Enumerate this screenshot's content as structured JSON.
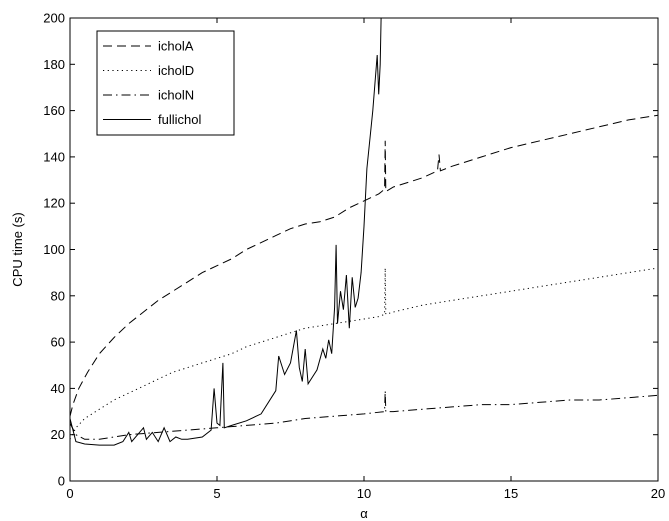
{
  "chart_data": {
    "type": "line",
    "title": "",
    "xlabel": "α",
    "ylabel": "CPU time (s)",
    "xlim": [
      0,
      20
    ],
    "ylim": [
      0,
      200
    ],
    "xticks": [
      0,
      5,
      10,
      15,
      20
    ],
    "yticks": [
      0,
      20,
      40,
      60,
      80,
      100,
      120,
      140,
      160,
      180,
      200
    ],
    "grid": false,
    "legend_position": "top-left",
    "series": [
      {
        "name": "icholA",
        "style": "dashed",
        "color": "#000000",
        "points": [
          [
            0,
            28
          ],
          [
            0.1,
            33
          ],
          [
            0.3,
            40
          ],
          [
            0.6,
            47
          ],
          [
            1,
            55
          ],
          [
            1.5,
            62
          ],
          [
            2,
            68
          ],
          [
            2.5,
            73
          ],
          [
            3,
            78
          ],
          [
            3.5,
            82
          ],
          [
            4,
            86
          ],
          [
            4.5,
            90
          ],
          [
            5,
            93
          ],
          [
            5.5,
            96
          ],
          [
            6,
            100
          ],
          [
            6.5,
            103
          ],
          [
            7,
            106
          ],
          [
            7.5,
            109
          ],
          [
            8,
            111
          ],
          [
            8.5,
            112
          ],
          [
            9,
            114
          ],
          [
            9.5,
            118
          ],
          [
            10,
            121
          ],
          [
            10.5,
            124
          ],
          [
            10.7,
            126
          ],
          [
            10.72,
            147
          ],
          [
            10.74,
            125
          ],
          [
            11,
            127
          ],
          [
            11.5,
            129
          ],
          [
            12,
            131
          ],
          [
            12.5,
            134
          ],
          [
            12.55,
            141
          ],
          [
            12.6,
            134
          ],
          [
            13,
            136
          ],
          [
            14,
            140
          ],
          [
            15,
            144
          ],
          [
            16,
            147
          ],
          [
            17,
            150
          ],
          [
            18,
            153
          ],
          [
            19,
            156
          ],
          [
            20,
            158
          ]
        ]
      },
      {
        "name": "icholD",
        "style": "dotted",
        "color": "#000000",
        "points": [
          [
            0,
            18
          ],
          [
            0.2,
            23
          ],
          [
            0.5,
            27
          ],
          [
            1,
            31
          ],
          [
            1.5,
            35
          ],
          [
            2,
            38
          ],
          [
            2.5,
            41
          ],
          [
            3,
            44
          ],
          [
            3.5,
            47
          ],
          [
            4,
            49
          ],
          [
            4.5,
            51
          ],
          [
            5,
            53
          ],
          [
            5.5,
            55
          ],
          [
            6,
            58
          ],
          [
            6.5,
            60
          ],
          [
            7,
            62
          ],
          [
            7.5,
            64
          ],
          [
            8,
            66
          ],
          [
            8.5,
            67
          ],
          [
            9,
            68
          ],
          [
            9.5,
            69
          ],
          [
            10,
            70
          ],
          [
            10.5,
            71
          ],
          [
            10.7,
            72
          ],
          [
            10.72,
            92
          ],
          [
            10.74,
            72
          ],
          [
            11,
            73
          ],
          [
            12,
            76
          ],
          [
            13,
            78
          ],
          [
            14,
            80
          ],
          [
            15,
            82
          ],
          [
            16,
            84
          ],
          [
            17,
            86
          ],
          [
            18,
            88
          ],
          [
            19,
            90
          ],
          [
            20,
            92
          ]
        ]
      },
      {
        "name": "icholN",
        "style": "dashdot",
        "color": "#000000",
        "points": [
          [
            0,
            25
          ],
          [
            0.2,
            20
          ],
          [
            0.5,
            18
          ],
          [
            1,
            18
          ],
          [
            2,
            20
          ],
          [
            3,
            21
          ],
          [
            4,
            22
          ],
          [
            5,
            23
          ],
          [
            6,
            24
          ],
          [
            7,
            25
          ],
          [
            8,
            27
          ],
          [
            9,
            28
          ],
          [
            10,
            29
          ],
          [
            10.7,
            30
          ],
          [
            10.72,
            39
          ],
          [
            10.74,
            30
          ],
          [
            11,
            30
          ],
          [
            12,
            31
          ],
          [
            13,
            32
          ],
          [
            14,
            33
          ],
          [
            15,
            33
          ],
          [
            16,
            34
          ],
          [
            17,
            35
          ],
          [
            18,
            35
          ],
          [
            19,
            36
          ],
          [
            20,
            37
          ]
        ]
      },
      {
        "name": "fullichol",
        "style": "solid",
        "color": "#000000",
        "points": [
          [
            0,
            27
          ],
          [
            0.2,
            17
          ],
          [
            0.5,
            16
          ],
          [
            1,
            15.5
          ],
          [
            1.5,
            15.5
          ],
          [
            1.8,
            17
          ],
          [
            2,
            21
          ],
          [
            2.1,
            17
          ],
          [
            2.3,
            20
          ],
          [
            2.5,
            23
          ],
          [
            2.6,
            18
          ],
          [
            2.8,
            21
          ],
          [
            3,
            17
          ],
          [
            3.2,
            23
          ],
          [
            3.4,
            17
          ],
          [
            3.6,
            19
          ],
          [
            3.8,
            18
          ],
          [
            4,
            18
          ],
          [
            4.5,
            19
          ],
          [
            4.8,
            22
          ],
          [
            4.9,
            40
          ],
          [
            5,
            25
          ],
          [
            5.1,
            24
          ],
          [
            5.2,
            51
          ],
          [
            5.25,
            23
          ],
          [
            5.5,
            24
          ],
          [
            6,
            26
          ],
          [
            6.5,
            29
          ],
          [
            7,
            39
          ],
          [
            7.1,
            54
          ],
          [
            7.3,
            46
          ],
          [
            7.5,
            51
          ],
          [
            7.7,
            65
          ],
          [
            7.8,
            49
          ],
          [
            7.9,
            43
          ],
          [
            8,
            57
          ],
          [
            8.1,
            42
          ],
          [
            8.2,
            44
          ],
          [
            8.4,
            48
          ],
          [
            8.6,
            57
          ],
          [
            8.7,
            53
          ],
          [
            8.8,
            61
          ],
          [
            8.9,
            55
          ],
          [
            9,
            75
          ],
          [
            9.05,
            102
          ],
          [
            9.1,
            68
          ],
          [
            9.2,
            82
          ],
          [
            9.3,
            74
          ],
          [
            9.4,
            89
          ],
          [
            9.5,
            66
          ],
          [
            9.6,
            88
          ],
          [
            9.7,
            75
          ],
          [
            9.8,
            79
          ],
          [
            9.9,
            90
          ],
          [
            10,
            110
          ],
          [
            10.1,
            135
          ],
          [
            10.3,
            160
          ],
          [
            10.45,
            184
          ],
          [
            10.5,
            167
          ],
          [
            10.55,
            180
          ],
          [
            10.58,
            200
          ]
        ]
      }
    ]
  }
}
